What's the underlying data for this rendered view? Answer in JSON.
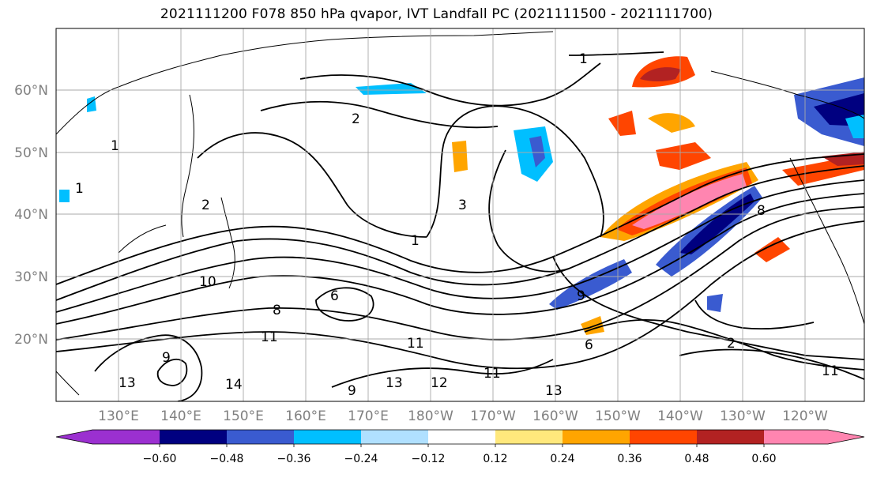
{
  "title": "2021111200 F078 850 hPa qvapor, IVT Landfall PC (2021111500 - 2021111700)",
  "map": {
    "lat_labels": [
      "60°N",
      "50°N",
      "40°N",
      "30°N",
      "20°N"
    ],
    "lon_labels": [
      "130°E",
      "140°E",
      "150°E",
      "160°E",
      "170°E",
      "180°W",
      "170°W",
      "160°W",
      "150°W",
      "140°W",
      "130°W",
      "120°W"
    ],
    "label_color": "#808080",
    "contour_labels": [
      "1",
      "1",
      "2",
      "1",
      "2",
      "10",
      "6",
      "8",
      "9",
      "11",
      "11",
      "13",
      "14",
      "9",
      "13",
      "12",
      "11",
      "13",
      "6",
      "9",
      "2",
      "11",
      "8",
      "3",
      "1"
    ]
  },
  "colorbar": {
    "colors": [
      "#9b30d0",
      "#000080",
      "#3a5bd0",
      "#00bfff",
      "#b0e0ff",
      "#ffffff",
      "#ffe87c",
      "#ffa500",
      "#ff4500",
      "#b22222",
      "#ff85b0"
    ],
    "tick_labels": [
      "−0.60",
      "−0.48",
      "−0.36",
      "−0.24",
      "−0.12",
      "0.12",
      "0.24",
      "0.36",
      "0.48",
      "0.60"
    ]
  }
}
